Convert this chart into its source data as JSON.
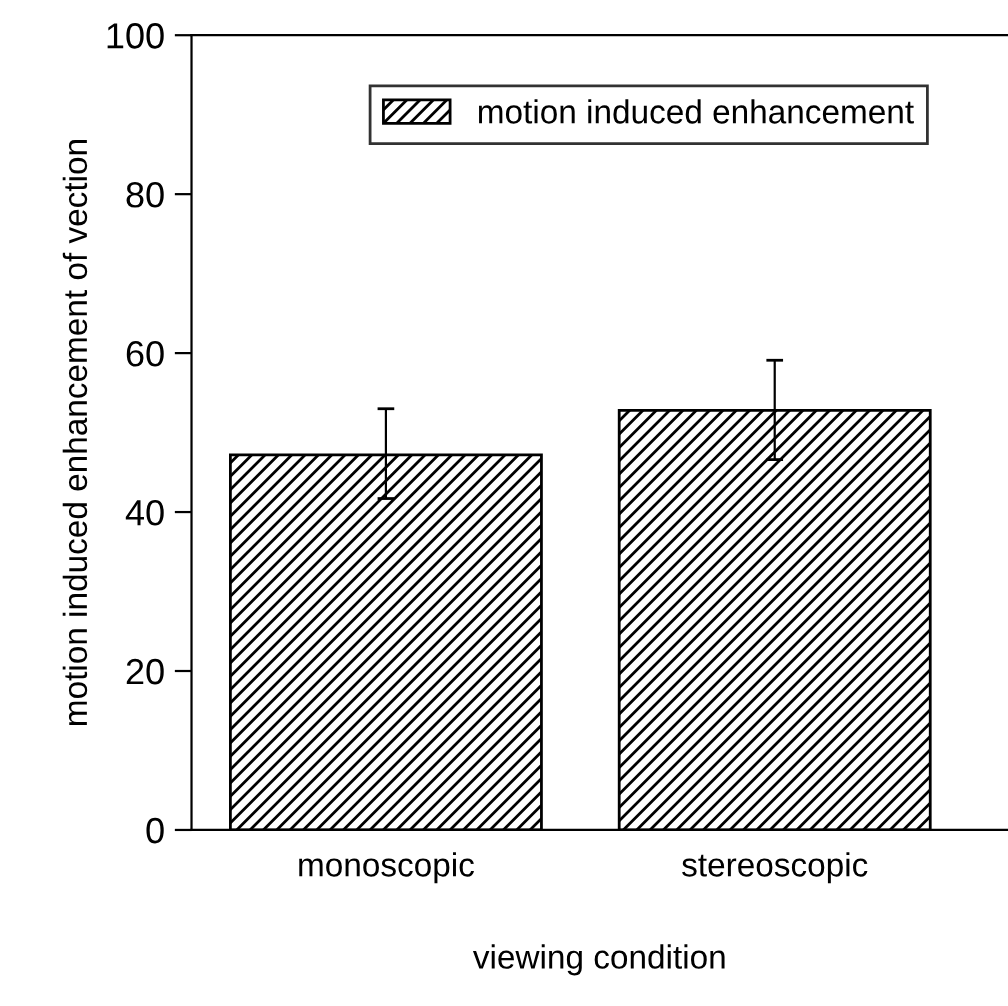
{
  "chart_data": {
    "type": "bar",
    "xlabel": "viewing condition",
    "ylabel": "motion induced enhancement of vection",
    "categories": [
      "monoscopic",
      "stereoscopic"
    ],
    "series": [
      {
        "name": "motion induced enhancement",
        "color": "#000000",
        "values": [
          47.2,
          52.8
        ],
        "errors": [
          [
            41.7,
            53.0
          ],
          [
            46.6,
            59.1
          ]
        ]
      }
    ],
    "ylim": [
      0,
      100
    ],
    "yticks": [
      0,
      20,
      40,
      60,
      80,
      100
    ],
    "grid": false,
    "legend": "top"
  }
}
